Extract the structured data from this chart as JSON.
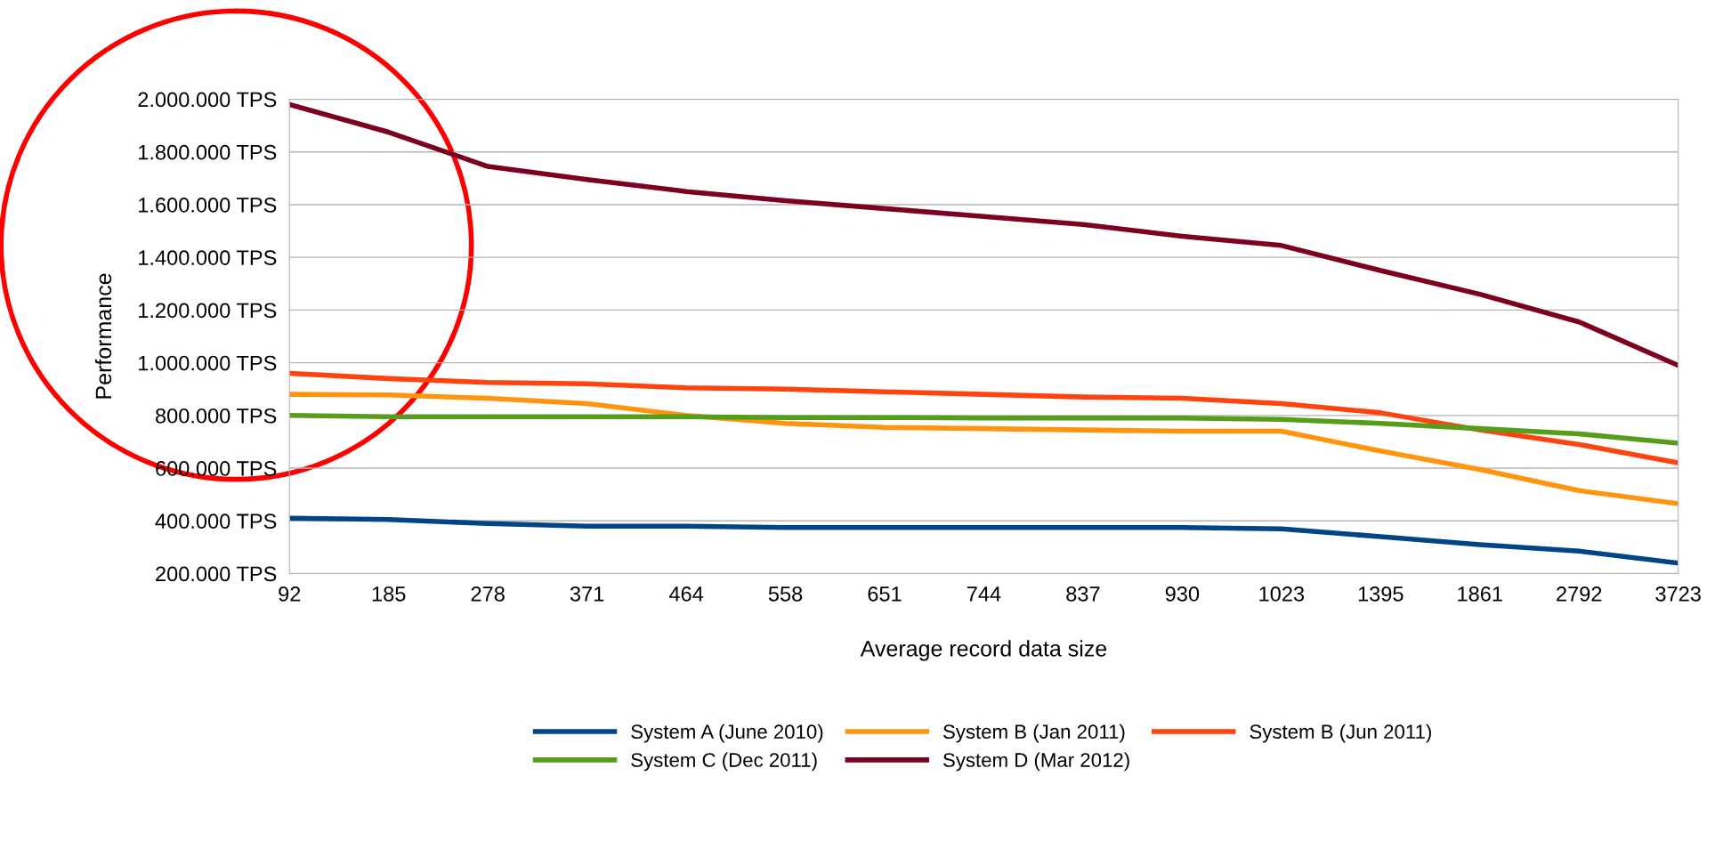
{
  "chart_data": {
    "type": "line",
    "xlabel": "Average record data size",
    "ylabel": "Performance",
    "categories": [
      "92",
      "185",
      "278",
      "371",
      "464",
      "558",
      "651",
      "744",
      "837",
      "930",
      "1023",
      "1395",
      "1861",
      "2792",
      "3723"
    ],
    "series": [
      {
        "name": "System A (June 2010)",
        "color": "#004586",
        "values": [
          410000,
          405000,
          390000,
          380000,
          380000,
          375000,
          375000,
          375000,
          375000,
          375000,
          370000,
          340000,
          310000,
          285000,
          240000
        ]
      },
      {
        "name": "System B (Jan 2011)",
        "color": "#ff950e",
        "values": [
          880000,
          878000,
          865000,
          845000,
          800000,
          770000,
          755000,
          750000,
          745000,
          740000,
          740000,
          665000,
          595000,
          515000,
          465000
        ]
      },
      {
        "name": "System B (Jun 2011)",
        "color": "#ff420e",
        "values": [
          960000,
          940000,
          925000,
          920000,
          905000,
          900000,
          890000,
          880000,
          870000,
          865000,
          845000,
          810000,
          745000,
          690000,
          620000
        ]
      },
      {
        "name": "System C (Dec 2011)",
        "color": "#579d1c",
        "values": [
          800000,
          795000,
          795000,
          795000,
          795000,
          792000,
          792000,
          790000,
          790000,
          790000,
          785000,
          770000,
          750000,
          730000,
          695000
        ]
      },
      {
        "name": "System D (Mar 2012)",
        "color": "#7e0021",
        "values": [
          1980000,
          1875000,
          1745000,
          1695000,
          1650000,
          1615000,
          1585000,
          1555000,
          1525000,
          1480000,
          1445000,
          1350000,
          1260000,
          1155000,
          990000
        ]
      }
    ],
    "ylim": [
      200000,
      2000000
    ],
    "yticks": [
      {
        "value": 200000,
        "label": "200.000 TPS"
      },
      {
        "value": 400000,
        "label": "400.000 TPS"
      },
      {
        "value": 600000,
        "label": "600.000 TPS"
      },
      {
        "value": 800000,
        "label": "800.000 TPS"
      },
      {
        "value": 1000000,
        "label": "1.000.000 TPS"
      },
      {
        "value": 1200000,
        "label": "1.200.000 TPS"
      },
      {
        "value": 1400000,
        "label": "1.400.000 TPS"
      },
      {
        "value": 1600000,
        "label": "1.600.000 TPS"
      },
      {
        "value": 1800000,
        "label": "1.800.000 TPS"
      },
      {
        "value": 2000000,
        "label": "2.000.000 TPS"
      }
    ],
    "grid": "y",
    "legend": "bottom",
    "marker": "none",
    "line_style": "solid"
  }
}
